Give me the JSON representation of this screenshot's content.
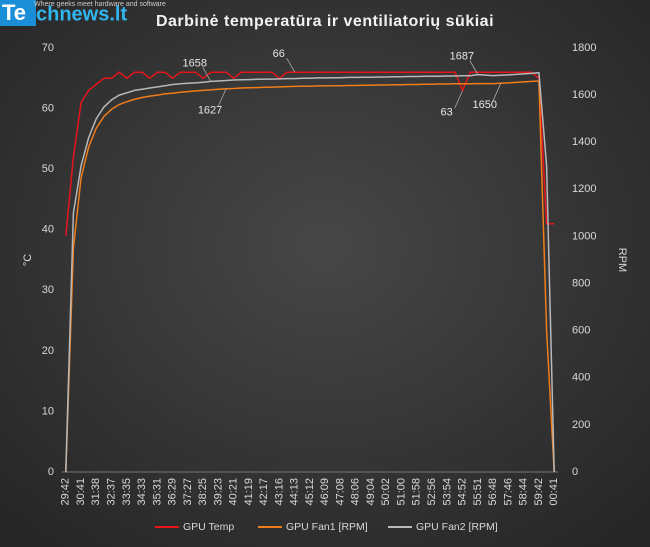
{
  "logo": {
    "brand_box": "Te",
    "brand_rest": "chnews.lt",
    "tagline": "Where geeks meet hardware and software"
  },
  "chart_data": {
    "type": "line",
    "title": "Darbinė temperatūra ir ventiliatorių sūkiai",
    "y_label": "°C",
    "y2_label": "RPM",
    "categories": [
      "29:42",
      null,
      "30:41",
      null,
      "31:38",
      null,
      "32:37",
      null,
      "33:35",
      null,
      "34:33",
      null,
      "35:31",
      null,
      "36:29",
      null,
      "37:27",
      null,
      "38:25",
      null,
      "39:23",
      null,
      "40:21",
      null,
      "41:19",
      null,
      "42:17",
      null,
      "43:16",
      null,
      "44:13",
      null,
      "45:12",
      null,
      "46:09",
      null,
      "47:08",
      null,
      "48:06",
      null,
      "49:04",
      null,
      "50:02",
      null,
      "51:00",
      null,
      "51:58",
      null,
      "52:56",
      null,
      "53:54",
      null,
      "54:52",
      null,
      "55:51",
      null,
      "56:48",
      null,
      "57:46",
      null,
      "58:44",
      null,
      "59:42",
      null,
      "00:41"
    ],
    "ylim": [
      0,
      70
    ],
    "yticks": [
      0,
      10,
      20,
      30,
      40,
      50,
      60,
      70
    ],
    "y2lim": [
      0,
      1800
    ],
    "y2ticks": [
      0,
      200,
      400,
      600,
      800,
      1000,
      1200,
      1400,
      1600,
      1800
    ],
    "grid": false,
    "legend": "bottom",
    "series": [
      {
        "name": "GPU Temp",
        "color": "#e8141c",
        "values": [
          39,
          52,
          61,
          63,
          64,
          65,
          65,
          66,
          65,
          66,
          66,
          65,
          66,
          66,
          65,
          66,
          66,
          66,
          65,
          66,
          66,
          66,
          65,
          66,
          66,
          66,
          66,
          66,
          65,
          66,
          66,
          66,
          66,
          66,
          66,
          66,
          66,
          66,
          66,
          66,
          66,
          66,
          66,
          66,
          66,
          66,
          66,
          66,
          66,
          66,
          66,
          66,
          63,
          66,
          66,
          66,
          66,
          66,
          66,
          66,
          66,
          66,
          65,
          41,
          41
        ],
        "value_labels": [
          null,
          null,
          null,
          null,
          null,
          null,
          null,
          null,
          null,
          null,
          null,
          null,
          null,
          null,
          null,
          null,
          null,
          null,
          null,
          null,
          null,
          null,
          null,
          null,
          null,
          null,
          null,
          null,
          null,
          null,
          "66",
          null,
          null,
          null,
          null,
          null,
          null,
          null,
          null,
          null,
          null,
          null,
          null,
          null,
          null,
          null,
          null,
          null,
          null,
          null,
          null,
          null,
          "63",
          null,
          null,
          null,
          null,
          null,
          null,
          null,
          null,
          null,
          null,
          null,
          null
        ]
      },
      {
        "name": "GPU Fan1 [RPM]",
        "color": "#f07d1a",
        "axis": "y2",
        "values": [
          0,
          950,
          1250,
          1380,
          1460,
          1510,
          1540,
          1560,
          1572,
          1582,
          1590,
          1596,
          1600,
          1605,
          1608,
          1612,
          1615,
          1618,
          1620,
          1622,
          1625,
          1627,
          1628,
          1630,
          1631,
          1632,
          1633,
          1634,
          1635,
          1636,
          1637,
          1638,
          1638,
          1639,
          1639,
          1640,
          1640,
          1641,
          1641,
          1642,
          1642,
          1643,
          1643,
          1644,
          1644,
          1645,
          1645,
          1646,
          1646,
          1647,
          1647,
          1648,
          1648,
          1648,
          1649,
          1649,
          1649,
          1650,
          1652,
          1654,
          1656,
          1658,
          1660,
          600,
          0
        ],
        "value_labels": [
          null,
          null,
          null,
          null,
          null,
          null,
          null,
          null,
          null,
          null,
          null,
          null,
          null,
          null,
          null,
          null,
          null,
          null,
          null,
          null,
          null,
          "1627",
          null,
          null,
          null,
          null,
          null,
          null,
          null,
          null,
          null,
          null,
          null,
          null,
          null,
          null,
          null,
          null,
          null,
          null,
          null,
          null,
          null,
          null,
          null,
          null,
          null,
          null,
          null,
          null,
          null,
          null,
          null,
          null,
          null,
          null,
          null,
          "1650",
          null,
          null,
          null,
          null,
          null,
          null,
          null
        ]
      },
      {
        "name": "GPU Fan2 [RPM]",
        "color": "#b8b8b8",
        "axis": "y2",
        "values": [
          0,
          1100,
          1300,
          1420,
          1500,
          1550,
          1580,
          1600,
          1610,
          1620,
          1625,
          1630,
          1635,
          1640,
          1645,
          1648,
          1650,
          1652,
          1655,
          1658,
          1660,
          1662,
          1664,
          1665,
          1666,
          1667,
          1668,
          1668,
          1669,
          1670,
          1670,
          1672,
          1672,
          1673,
          1673,
          1674,
          1674,
          1675,
          1675,
          1676,
          1676,
          1677,
          1677,
          1678,
          1678,
          1679,
          1679,
          1680,
          1680,
          1680,
          1681,
          1681,
          1682,
          1682,
          1687,
          1685,
          1683,
          1684,
          1686,
          1688,
          1690,
          1692,
          1695,
          1300,
          0
        ],
        "value_labels": [
          null,
          null,
          null,
          null,
          null,
          null,
          null,
          null,
          null,
          null,
          null,
          null,
          null,
          null,
          null,
          null,
          null,
          null,
          null,
          "1658",
          null,
          null,
          null,
          null,
          null,
          null,
          null,
          null,
          null,
          null,
          null,
          null,
          null,
          null,
          null,
          null,
          null,
          null,
          null,
          null,
          null,
          null,
          null,
          null,
          null,
          null,
          null,
          null,
          null,
          null,
          null,
          null,
          null,
          null,
          "1687",
          null,
          null,
          null,
          null,
          null,
          null,
          null,
          null,
          null,
          null
        ]
      }
    ]
  }
}
